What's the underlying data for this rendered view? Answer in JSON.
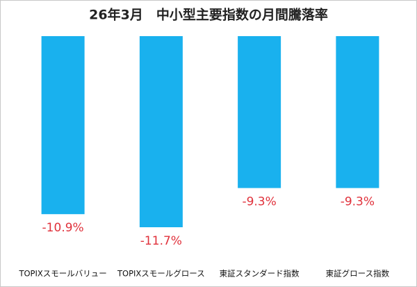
{
  "chart_data": {
    "type": "bar",
    "title": "26年3月　中小型主要指数の月間騰落率",
    "categories": [
      "TOPIXスモールバリュー",
      "TOPIXスモールグロース",
      "東証スタンダード指数",
      "東証グロース指数"
    ],
    "values": [
      -10.9,
      -11.7,
      -9.3,
      -9.3
    ],
    "value_labels": [
      "-10.9%",
      "-11.7%",
      "-9.3%",
      "-9.3%"
    ],
    "color": "#19b1ee",
    "label_color": "#e0313b"
  }
}
